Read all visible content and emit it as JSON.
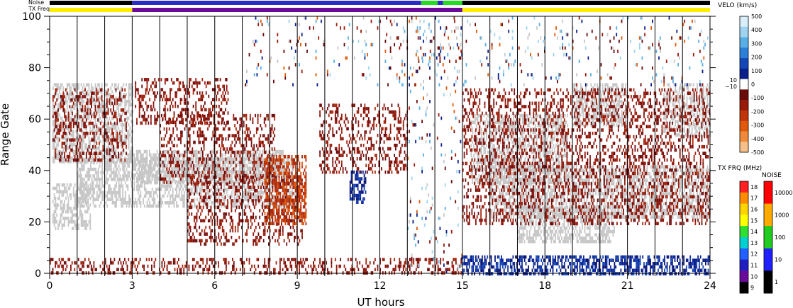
{
  "chart_data": {
    "type": "heatmap",
    "xlabel": "UT hours",
    "ylabel": "Range Gate",
    "xlim": [
      0,
      24
    ],
    "ylim": [
      0,
      100
    ],
    "x_ticks": [
      0,
      3,
      6,
      9,
      12,
      15,
      18,
      21,
      24
    ],
    "y_ticks": [
      0,
      20,
      40,
      60,
      80,
      100
    ],
    "hour_lines": [
      1,
      2,
      3,
      4,
      5,
      6,
      7,
      8,
      9,
      10,
      11,
      12,
      13,
      14,
      15,
      16,
      17,
      18,
      19,
      20,
      21,
      22,
      23
    ],
    "status_bars": {
      "noise_label": "Noise",
      "txfreq_label": "TX Freq",
      "noise_segments": [
        {
          "from": 0,
          "to": 3,
          "color": "#000000"
        },
        {
          "from": 3,
          "to": 13.5,
          "color": "#2a2ac8"
        },
        {
          "from": 13.5,
          "to": 14.1,
          "color": "#22dd22"
        },
        {
          "from": 14.1,
          "to": 14.3,
          "color": "#2a2ac8"
        },
        {
          "from": 14.3,
          "to": 15,
          "color": "#22dd22"
        },
        {
          "from": 15,
          "to": 24,
          "color": "#000000"
        }
      ],
      "txfreq_segments": [
        {
          "from": 0,
          "to": 3,
          "color": "#ffee00"
        },
        {
          "from": 3,
          "to": 15,
          "color": "#6a0a9a"
        },
        {
          "from": 15,
          "to": 24,
          "color": "#ffee00"
        }
      ]
    },
    "regions": [
      {
        "name": "ground-scatter-0-1h",
        "kind": "gs",
        "x": [
          0.1,
          1.5
        ],
        "y": [
          18,
          35
        ]
      },
      {
        "name": "ground-scatter-0-3h-upper",
        "kind": "gs",
        "x": [
          0.1,
          3.0
        ],
        "y": [
          44,
          74
        ]
      },
      {
        "name": "ground-scatter-1-9h",
        "kind": "gs",
        "x": [
          1.0,
          9.0
        ],
        "y": [
          26,
          45
        ]
      },
      {
        "name": "ground-scatter-3-8h",
        "kind": "gs",
        "x": [
          3.0,
          8.5
        ],
        "y": [
          36,
          48
        ]
      },
      {
        "name": "ground-scatter-15-19h",
        "kind": "gs",
        "x": [
          15.3,
          18.8
        ],
        "y": [
          36,
          62
        ]
      },
      {
        "name": "ground-scatter-16-24h",
        "kind": "gs",
        "x": [
          16.0,
          24.0
        ],
        "y": [
          22,
          42
        ]
      },
      {
        "name": "ground-scatter-17-20h",
        "kind": "gs",
        "x": [
          17.0,
          20.5
        ],
        "y": [
          12,
          26
        ]
      },
      {
        "name": "ground-scatter-19-21h",
        "kind": "gs",
        "x": [
          19.0,
          21.0
        ],
        "y": [
          58,
          74
        ]
      },
      {
        "name": "ground-scatter-22-24h",
        "kind": "gs",
        "x": [
          22.3,
          24.0
        ],
        "y": [
          54,
          74
        ]
      },
      {
        "name": "ionospheric-red-1-3h",
        "kind": "red",
        "x": [
          0.1,
          2.8
        ],
        "y": [
          44,
          72
        ]
      },
      {
        "name": "ionospheric-red-3-6h",
        "kind": "red",
        "x": [
          3.1,
          6.5
        ],
        "y": [
          58,
          76
        ]
      },
      {
        "name": "ionospheric-red-4-8h",
        "kind": "red",
        "x": [
          4.0,
          8.2
        ],
        "y": [
          36,
          62
        ]
      },
      {
        "name": "ionospheric-red-5-9h",
        "kind": "red",
        "x": [
          5.0,
          9.2
        ],
        "y": [
          12,
          38
        ]
      },
      {
        "name": "ionospheric-orange-8-9h",
        "kind": "orange",
        "x": [
          7.8,
          9.3
        ],
        "y": [
          20,
          46
        ]
      },
      {
        "name": "ionospheric-red-10-13h",
        "kind": "red",
        "x": [
          9.8,
          13.0
        ],
        "y": [
          40,
          66
        ]
      },
      {
        "name": "ionospheric-blue-11h",
        "kind": "blue",
        "x": [
          10.9,
          11.5
        ],
        "y": [
          28,
          40
        ]
      },
      {
        "name": "ionospheric-red-15-24h",
        "kind": "red",
        "x": [
          15.0,
          24.0
        ],
        "y": [
          20,
          72
        ]
      },
      {
        "name": "near-range-red-0-15h",
        "kind": "red",
        "x": [
          0.0,
          15.0
        ],
        "y": [
          0,
          6
        ]
      },
      {
        "name": "near-range-blue-15-24h",
        "kind": "blue",
        "x": [
          15.0,
          24.0
        ],
        "y": [
          0,
          7
        ]
      },
      {
        "name": "scattered-13-15h",
        "kind": "mixed",
        "x": [
          13.0,
          15.0
        ],
        "y": [
          0,
          100
        ]
      },
      {
        "name": "scattered-high-gates",
        "kind": "mixed",
        "x": [
          7.0,
          24.0
        ],
        "y": [
          74,
          100
        ]
      }
    ],
    "velocity_colorbar": {
      "title": "VELO (km/s)",
      "ticks": [
        500,
        400,
        300,
        200,
        100,
        0,
        -100,
        -200,
        -300,
        -400,
        -500
      ],
      "side_ticks": [
        "10",
        "−10"
      ],
      "colors": [
        "#d8eefa",
        "#9ed4f2",
        "#5aaee6",
        "#2a7fd8",
        "#1448b8",
        "#0a1e8c",
        "#ffffff",
        "#6a0a0a",
        "#9a1a0a",
        "#c0340a",
        "#e05a0a",
        "#f08a3a",
        "#f7c08a"
      ]
    },
    "txfreq_colorbar": {
      "title": "TX FRQ (MHz)",
      "ticks": [
        18,
        17,
        16,
        15,
        14,
        13,
        12,
        11,
        10,
        9
      ],
      "colors": [
        "#ff2020",
        "#ff8c00",
        "#ffd400",
        "#ffff00",
        "#30e030",
        "#00d0d0",
        "#2060ff",
        "#2020c0",
        "#6a0a9a",
        "#000000"
      ]
    },
    "noise_colorbar": {
      "title": "NOISE",
      "ticks": [
        10000,
        1000,
        100,
        10,
        1
      ],
      "colors": [
        "#ff0000",
        "#ffaa00",
        "#20cc20",
        "#2020ff",
        "#000000"
      ]
    }
  }
}
